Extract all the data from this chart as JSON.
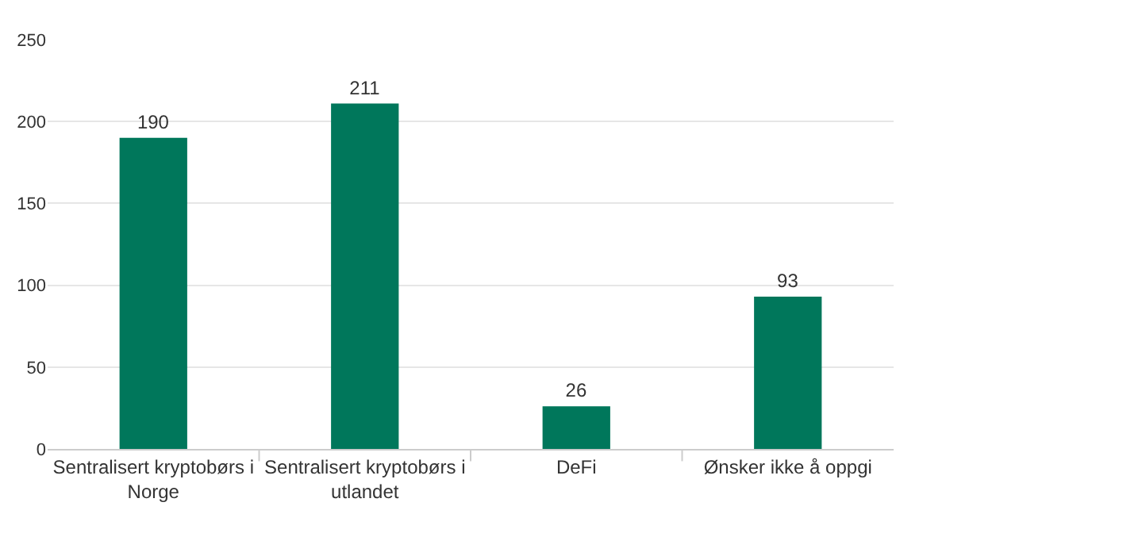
{
  "chart_data": {
    "type": "bar",
    "categories": [
      "Sentralisert kryptobørs i Norge",
      "Sentralisert kryptobørs i utlandet",
      "DeFi",
      "Ønsker ikke å oppgi"
    ],
    "values": [
      190,
      211,
      26,
      93
    ],
    "color": "#00775b",
    "ylim": [
      0,
      250
    ],
    "yticks": [
      0,
      50,
      100,
      150,
      200,
      250
    ],
    "grid": "y",
    "data_labels": true
  }
}
